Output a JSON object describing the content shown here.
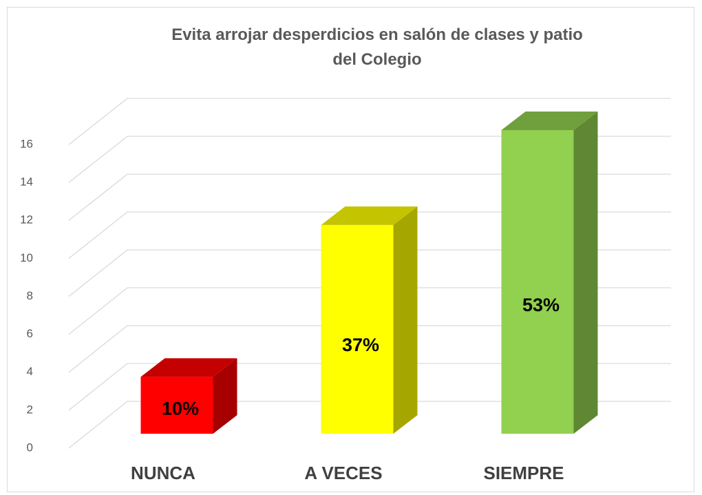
{
  "chart_data": {
    "type": "bar3d",
    "title": "Evita arrojar desperdicios en salón de clases y patio del Colegio",
    "categories": [
      "NUNCA",
      "A VECES",
      "SIEMPRE"
    ],
    "values": [
      3,
      11,
      16
    ],
    "value_labels": [
      "10%",
      "37%",
      "53%"
    ],
    "colors": [
      "#ff0000",
      "#ffff00",
      "#92d050"
    ],
    "ylim": [
      0,
      16
    ],
    "yticks": [
      0,
      2,
      4,
      6,
      8,
      10,
      12,
      14,
      16
    ],
    "grid": true
  }
}
